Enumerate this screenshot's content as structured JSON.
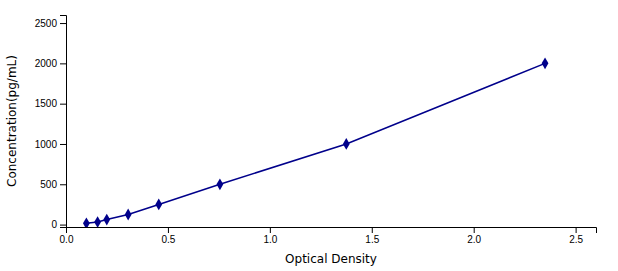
{
  "chart_data": {
    "type": "line",
    "x": [
      0.1,
      0.155,
      0.2,
      0.305,
      0.455,
      0.755,
      1.375,
      2.35
    ],
    "values": [
      15.6,
      31.2,
      62.5,
      125,
      250,
      500,
      1000,
      2000
    ],
    "color": "#00008B",
    "marker": "diamond",
    "line_style": "solid",
    "xlabel": "Optical Density",
    "ylabel": "Concentration(pg/mL)",
    "xlim": [
      0.0,
      2.6
    ],
    "ylim": [
      -30,
      2600
    ],
    "xticks": [
      {
        "value": 0,
        "label": "0.0"
      },
      0.5,
      {
        "value": 1,
        "label": "1.0"
      },
      1.5,
      {
        "value": 2,
        "label": "2.0"
      },
      2.5
    ],
    "yticks": [
      0,
      500,
      1000,
      1500,
      2000,
      2500
    ],
    "grid": false
  }
}
